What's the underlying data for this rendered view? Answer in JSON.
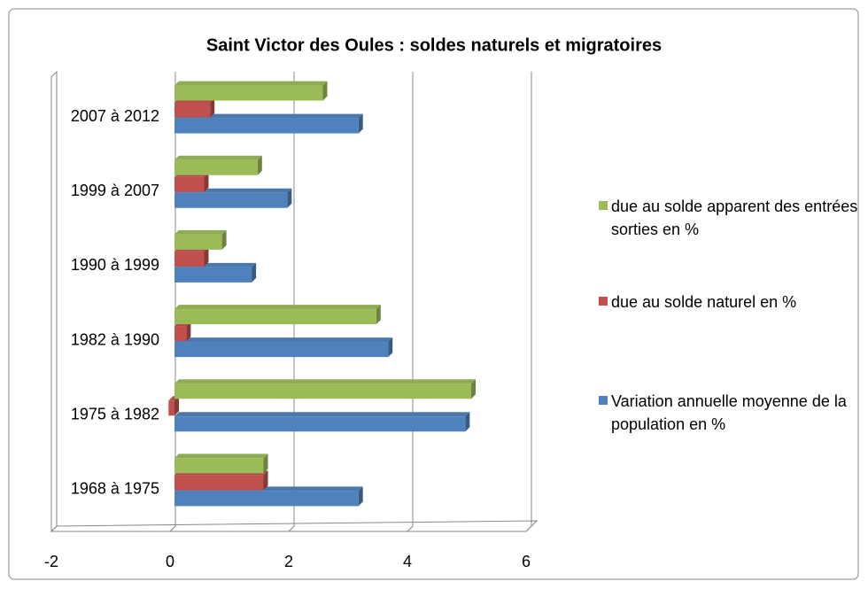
{
  "chart_data": {
    "type": "bar3d_horizontal",
    "title": "Saint Victor des Oules : soldes naturels et migratoires",
    "categories": [
      "1968 à 1975",
      "1975 à 1982",
      "1982 à 1990",
      "1990 à 1999",
      "1999 à 2007",
      "2007 à 2012"
    ],
    "series": [
      {
        "name": "Variation annuelle moyenne de la population en %",
        "color": "#4f81bd",
        "values": [
          3.1,
          4.9,
          3.6,
          1.3,
          1.9,
          3.1
        ]
      },
      {
        "name": "due au solde naturel en %",
        "color": "#c0504d",
        "values": [
          1.5,
          -0.1,
          0.2,
          0.5,
          0.5,
          0.6
        ]
      },
      {
        "name": "due au solde apparent des entrées sorties en %",
        "color": "#9bbb59",
        "values": [
          1.5,
          5.0,
          3.4,
          0.8,
          1.4,
          2.5
        ]
      }
    ],
    "xlim": [
      -2,
      6
    ],
    "xticks": [
      -2,
      0,
      2,
      4,
      6
    ],
    "grid": true,
    "legend": "right"
  }
}
